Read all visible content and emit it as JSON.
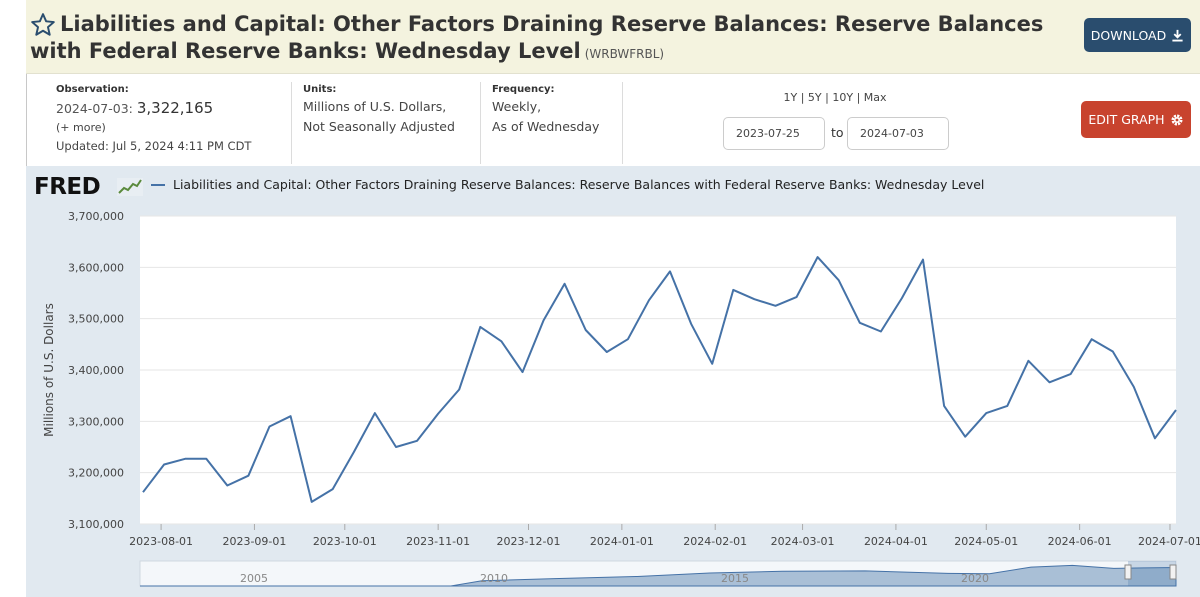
{
  "header": {
    "title": "Liabilities and Capital: Other Factors Draining Reserve Balances: Reserve Balances with Federal Reserve Banks: Wednesday Level",
    "series_id": "(WRBWFRBL)",
    "download_label": "DOWNLOAD",
    "edit_graph_label": "EDIT GRAPH"
  },
  "meta": {
    "observation_label": "Observation:",
    "observation_date": "2024-07-03:",
    "observation_value": "3,322,165",
    "more_label": "(+ more)",
    "updated": "Updated: Jul 5, 2024 4:11 PM CDT",
    "units_label": "Units:",
    "units_line1": "Millions of U.S. Dollars,",
    "units_line2": "Not Seasonally Adjusted",
    "frequency_label": "Frequency:",
    "frequency_line1": "Weekly,",
    "frequency_line2": "As of Wednesday"
  },
  "range": {
    "links": [
      "1Y",
      "5Y",
      "10Y",
      "Max"
    ],
    "separator": "|",
    "start_date": "2023-07-25",
    "to_label": "to",
    "end_date": "2024-07-03"
  },
  "logo": {
    "text": "FRED"
  },
  "colors": {
    "series": "#4572a7",
    "download_button": "#2a4d6e",
    "edit_button": "#c8432e",
    "chart_background": "#e1e9f0"
  },
  "icons": {
    "star": "star-outline-icon",
    "download": "download-icon",
    "edit": "gear-icon"
  },
  "chart_data": {
    "type": "line",
    "legend": "Liabilities and Capital: Other Factors Draining Reserve Balances: Reserve Balances with Federal Reserve Banks: Wednesday Level",
    "ylabel": "Millions of U.S. Dollars",
    "ylim": [
      3100000,
      3700000
    ],
    "yticks": [
      3100000,
      3200000,
      3300000,
      3400000,
      3500000,
      3600000,
      3700000
    ],
    "ytick_labels": [
      "3,100,000",
      "3,200,000",
      "3,300,000",
      "3,400,000",
      "3,500,000",
      "3,600,000",
      "3,700,000"
    ],
    "xlim": [
      "2023-07-25",
      "2024-07-03"
    ],
    "xticks": [
      "2023-08-01",
      "2023-09-01",
      "2023-10-01",
      "2023-11-01",
      "2023-12-01",
      "2024-01-01",
      "2024-02-01",
      "2024-03-01",
      "2024-04-01",
      "2024-05-01",
      "2024-06-01",
      "2024-07-01"
    ],
    "grid": true,
    "series": [
      {
        "name": "Liabilities and Capital: Other Factors Draining Reserve Balances: Reserve Balances with Federal Reserve Banks: Wednesday Level",
        "x": [
          "2023-07-26",
          "2023-08-02",
          "2023-08-09",
          "2023-08-16",
          "2023-08-23",
          "2023-08-30",
          "2023-09-06",
          "2023-09-13",
          "2023-09-20",
          "2023-09-27",
          "2023-10-04",
          "2023-10-11",
          "2023-10-18",
          "2023-10-25",
          "2023-11-01",
          "2023-11-08",
          "2023-11-15",
          "2023-11-22",
          "2023-11-29",
          "2023-12-06",
          "2023-12-13",
          "2023-12-20",
          "2023-12-27",
          "2024-01-03",
          "2024-01-10",
          "2024-01-17",
          "2024-01-24",
          "2024-01-31",
          "2024-02-07",
          "2024-02-14",
          "2024-02-21",
          "2024-02-28",
          "2024-03-06",
          "2024-03-13",
          "2024-03-20",
          "2024-03-27",
          "2024-04-03",
          "2024-04-10",
          "2024-04-17",
          "2024-04-24",
          "2024-05-01",
          "2024-05-08",
          "2024-05-15",
          "2024-05-22",
          "2024-05-29",
          "2024-06-05",
          "2024-06-12",
          "2024-06-19",
          "2024-06-26",
          "2024-07-03"
        ],
        "y": [
          3162000,
          3216000,
          3227000,
          3227000,
          3175000,
          3194000,
          3290000,
          3310000,
          3143000,
          3168000,
          3240000,
          3316000,
          3250000,
          3262000,
          3315000,
          3362000,
          3484000,
          3456000,
          3396000,
          3497000,
          3568000,
          3478000,
          3435000,
          3460000,
          3536000,
          3592000,
          3490000,
          3412000,
          3556000,
          3538000,
          3525000,
          3542000,
          3620000,
          3575000,
          3492000,
          3475000,
          3540000,
          3615000,
          3330000,
          3270000,
          3316000,
          3330000,
          3418000,
          3376000,
          3392000,
          3460000,
          3436000,
          3367000,
          3267000,
          3322165
        ]
      }
    ],
    "navigator_labels": [
      "2005",
      "2010",
      "2015",
      "2020"
    ]
  }
}
